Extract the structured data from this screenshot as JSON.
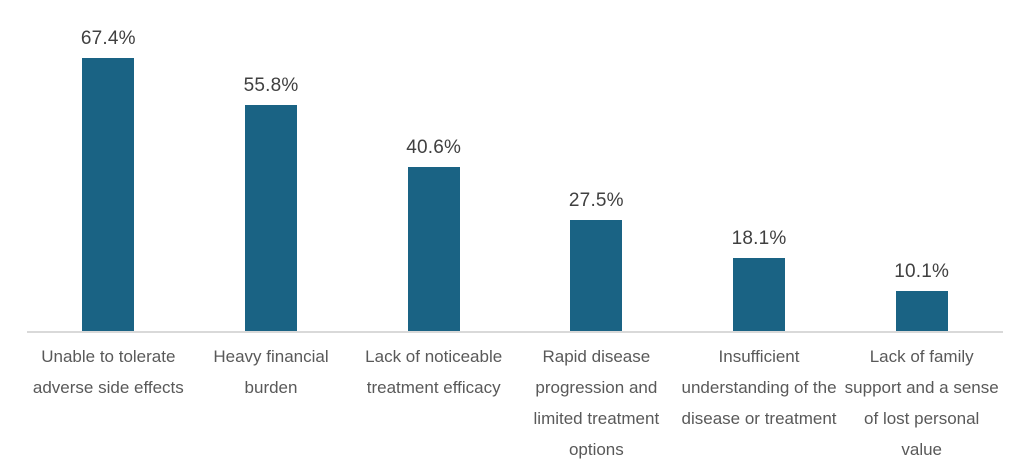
{
  "chart_data": {
    "type": "bar",
    "title": "",
    "xlabel": "",
    "ylabel": "",
    "categories": [
      "Unable to tolerate adverse side effects",
      "Heavy financial burden",
      "Lack of noticeable treatment efficacy",
      "Rapid disease progression and limited treatment options",
      "Insufficient understanding of the disease or treatment",
      "Lack of family support and a sense of lost personal value"
    ],
    "values": [
      67.4,
      55.8,
      40.6,
      27.5,
      18.1,
      10.1
    ],
    "value_labels": [
      "67.4%",
      "55.8%",
      "40.6%",
      "27.5%",
      "18.1%",
      "10.1%"
    ],
    "ylim": [
      0,
      80
    ],
    "grid": false,
    "legend": false,
    "data_labels_shown": true,
    "colors": {
      "bar": "#1a6384",
      "value_label": "#404040",
      "category_label": "#595959",
      "axis_line": "#d9d9d9",
      "background": "#ffffff"
    }
  }
}
